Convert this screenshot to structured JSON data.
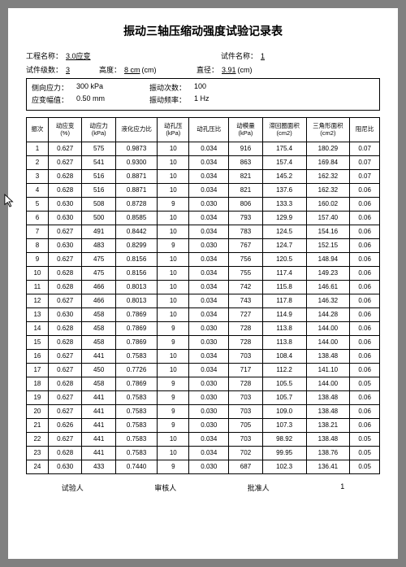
{
  "title": "振动三轴压缩动强度试验记录表",
  "meta": {
    "proj_label": "工程名称：",
    "proj_val": "3.0应变",
    "spec_label": "试件名称：",
    "spec_val": "1",
    "layer_label": "试件级数：",
    "layer_val": "3",
    "height_label": "高度：",
    "height_val": "8 cm",
    "height_unit": "(cm)",
    "diam_label": "直径：",
    "diam_val": "3.91",
    "diam_unit": "(cm)"
  },
  "box": {
    "r1a_label": "侧向应力：",
    "r1a_val": "300 kPa",
    "r1b_label": "振动次数：",
    "r1b_val": "100",
    "r2a_label": "应变幅值：",
    "r2a_val": "0.50 mm",
    "r2b_label": "振动频率：",
    "r2b_val": "1 Hz"
  },
  "columns": [
    "振次",
    "动应变\n(%)",
    "动应力\n(kPa)",
    "液化应力比",
    "动孔压\n(kPa)",
    "动孔压比",
    "动模量\n(kPa)",
    "滞回圈面积\n(cm2)",
    "三角形面积\n(cm2)",
    "阻尼比"
  ],
  "col_widths": [
    "c0",
    "c1",
    "c2",
    "c3",
    "c4",
    "c5",
    "c6",
    "c7",
    "c8",
    "c9"
  ],
  "rows": [
    [
      "1",
      "0.627",
      "575",
      "0.9873",
      "10",
      "0.034",
      "916",
      "175.4",
      "180.29",
      "0.07"
    ],
    [
      "2",
      "0.627",
      "541",
      "0.9300",
      "10",
      "0.034",
      "863",
      "157.4",
      "169.84",
      "0.07"
    ],
    [
      "3",
      "0.628",
      "516",
      "0.8871",
      "10",
      "0.034",
      "821",
      "145.2",
      "162.32",
      "0.07"
    ],
    [
      "4",
      "0.628",
      "516",
      "0.8871",
      "10",
      "0.034",
      "821",
      "137.6",
      "162.32",
      "0.06"
    ],
    [
      "5",
      "0.630",
      "508",
      "0.8728",
      "9",
      "0.030",
      "806",
      "133.3",
      "160.02",
      "0.06"
    ],
    [
      "6",
      "0.630",
      "500",
      "0.8585",
      "10",
      "0.034",
      "793",
      "129.9",
      "157.40",
      "0.06"
    ],
    [
      "7",
      "0.627",
      "491",
      "0.8442",
      "10",
      "0.034",
      "783",
      "124.5",
      "154.16",
      "0.06"
    ],
    [
      "8",
      "0.630",
      "483",
      "0.8299",
      "9",
      "0.030",
      "767",
      "124.7",
      "152.15",
      "0.06"
    ],
    [
      "9",
      "0.627",
      "475",
      "0.8156",
      "10",
      "0.034",
      "756",
      "120.5",
      "148.94",
      "0.06"
    ],
    [
      "10",
      "0.628",
      "475",
      "0.8156",
      "10",
      "0.034",
      "755",
      "117.4",
      "149.23",
      "0.06"
    ],
    [
      "11",
      "0.628",
      "466",
      "0.8013",
      "10",
      "0.034",
      "742",
      "115.8",
      "146.61",
      "0.06"
    ],
    [
      "12",
      "0.627",
      "466",
      "0.8013",
      "10",
      "0.034",
      "743",
      "117.8",
      "146.32",
      "0.06"
    ],
    [
      "13",
      "0.630",
      "458",
      "0.7869",
      "10",
      "0.034",
      "727",
      "114.9",
      "144.28",
      "0.06"
    ],
    [
      "14",
      "0.628",
      "458",
      "0.7869",
      "9",
      "0.030",
      "728",
      "113.8",
      "144.00",
      "0.06"
    ],
    [
      "15",
      "0.628",
      "458",
      "0.7869",
      "9",
      "0.030",
      "728",
      "113.8",
      "144.00",
      "0.06"
    ],
    [
      "16",
      "0.627",
      "441",
      "0.7583",
      "10",
      "0.034",
      "703",
      "108.4",
      "138.48",
      "0.06"
    ],
    [
      "17",
      "0.627",
      "450",
      "0.7726",
      "10",
      "0.034",
      "717",
      "112.2",
      "141.10",
      "0.06"
    ],
    [
      "18",
      "0.628",
      "458",
      "0.7869",
      "9",
      "0.030",
      "728",
      "105.5",
      "144.00",
      "0.05"
    ],
    [
      "19",
      "0.627",
      "441",
      "0.7583",
      "9",
      "0.030",
      "703",
      "105.7",
      "138.48",
      "0.06"
    ],
    [
      "20",
      "0.627",
      "441",
      "0.7583",
      "9",
      "0.030",
      "703",
      "109.0",
      "138.48",
      "0.06"
    ],
    [
      "21",
      "0.626",
      "441",
      "0.7583",
      "9",
      "0.030",
      "705",
      "107.3",
      "138.21",
      "0.06"
    ],
    [
      "22",
      "0.627",
      "441",
      "0.7583",
      "10",
      "0.034",
      "703",
      "98.92",
      "138.48",
      "0.05"
    ],
    [
      "23",
      "0.628",
      "441",
      "0.7583",
      "10",
      "0.034",
      "702",
      "99.95",
      "138.76",
      "0.05"
    ],
    [
      "24",
      "0.630",
      "433",
      "0.7440",
      "9",
      "0.030",
      "687",
      "102.3",
      "136.41",
      "0.05"
    ]
  ],
  "footer": {
    "a": "试验人",
    "b": "审核人",
    "c": "批准人",
    "page": "1"
  }
}
